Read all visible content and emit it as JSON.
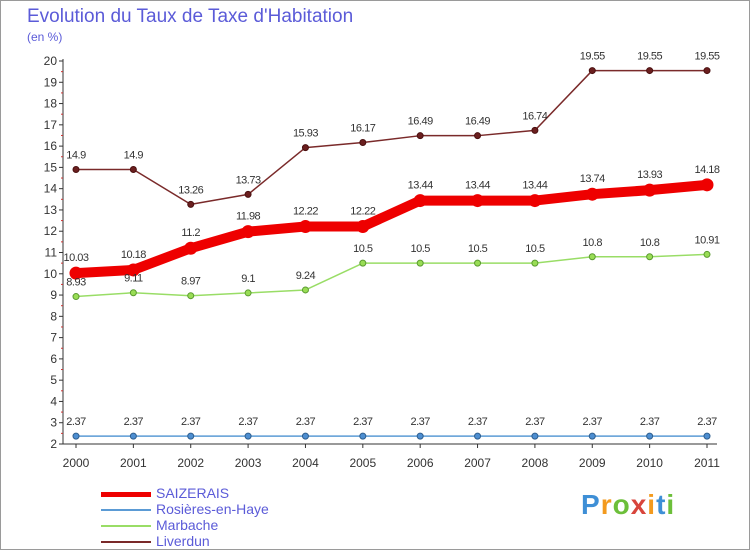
{
  "title": "Evolution du Taux de Taxe d'Habitation",
  "unit_label": "(en %)",
  "logo": {
    "letters": [
      "P",
      "r",
      "o",
      "x",
      "i",
      "t",
      "i"
    ],
    "colors": [
      "#3e8fd6",
      "#f39a1e",
      "#6cbf3a",
      "#d8453c",
      "#f39a1e",
      "#3e8fd6",
      "#6cbf3a"
    ]
  },
  "chart_data": {
    "type": "line",
    "title": "Evolution du Taux de Taxe d'Habitation",
    "ylabel": "(en %)",
    "xlabel": "",
    "x": [
      "2000",
      "2001",
      "2002",
      "2003",
      "2004",
      "2005",
      "2006",
      "2007",
      "2008",
      "2009",
      "2010",
      "2011"
    ],
    "ylim": [
      2,
      20
    ],
    "yticks": [
      "2",
      "3",
      "4",
      "5",
      "6",
      "7",
      "8",
      "9",
      "10",
      "11",
      "12",
      "13",
      "14",
      "15",
      "16",
      "17",
      "18",
      "19",
      "20"
    ],
    "grid": false,
    "legend_position": "bottom-left",
    "series": [
      {
        "name": "SAIZERAIS",
        "color": "#ee0000",
        "values": [
          10.03,
          10.18,
          11.2,
          11.98,
          12.22,
          12.22,
          13.44,
          13.44,
          13.44,
          13.74,
          13.93,
          14.18
        ],
        "labels": [
          "10.03",
          "10.18",
          "11.2",
          "11.98",
          "12.22",
          "12.22",
          "13.44",
          "13.44",
          "13.44",
          "13.74",
          "13.93",
          "14.18"
        ]
      },
      {
        "name": "Rosières-en-Haye",
        "color": "#5b9bd5",
        "values": [
          2.37,
          2.37,
          2.37,
          2.37,
          2.37,
          2.37,
          2.37,
          2.37,
          2.37,
          2.37,
          2.37,
          2.37
        ],
        "labels": [
          "2.37",
          "2.37",
          "2.37",
          "2.37",
          "2.37",
          "2.37",
          "2.37",
          "2.37",
          "2.37",
          "2.37",
          "2.37",
          "2.37"
        ]
      },
      {
        "name": "Marbache",
        "color": "#99dd66",
        "values": [
          8.93,
          9.11,
          8.97,
          9.1,
          9.24,
          10.5,
          10.5,
          10.5,
          10.5,
          10.8,
          10.8,
          10.91
        ],
        "labels": [
          "8.93",
          "9.11",
          "8.97",
          "9.1",
          "9.24",
          "10.5",
          "10.5",
          "10.5",
          "10.5",
          "10.8",
          "10.8",
          "10.91"
        ]
      },
      {
        "name": "Liverdun",
        "color": "#7a2a2a",
        "values": [
          14.9,
          14.9,
          13.26,
          13.73,
          15.93,
          16.17,
          16.49,
          16.49,
          16.74,
          19.55,
          19.55,
          19.55
        ],
        "labels": [
          "14.9",
          "14.9",
          "13.26",
          "13.73",
          "15.93",
          "16.17",
          "16.49",
          "16.49",
          "16.74",
          "19.55",
          "19.55",
          "19.55"
        ]
      }
    ]
  }
}
